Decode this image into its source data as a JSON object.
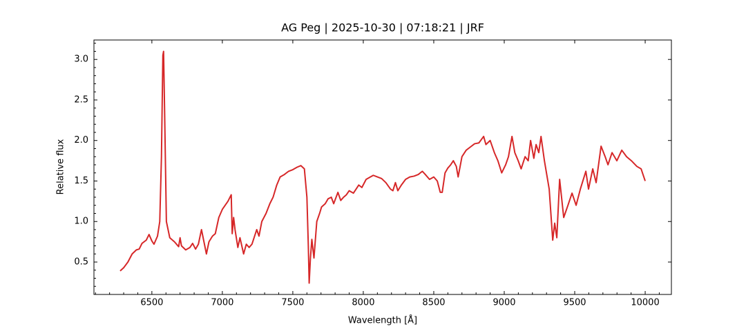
{
  "chart_data": {
    "type": "line",
    "title": "AG Peg | 2025-10-30 | 07:18:21 | JRF",
    "xlabel": "Wavelength [Å]",
    "ylabel": "Relative flux",
    "color": "#d62728",
    "x": [
      6275,
      6300,
      6330,
      6360,
      6390,
      6410,
      6430,
      6460,
      6480,
      6500,
      6515,
      6540,
      6556,
      6568,
      6578,
      6583,
      6590,
      6603,
      6627,
      6660,
      6690,
      6700,
      6710,
      6740,
      6770,
      6789,
      6810,
      6830,
      6852,
      6887,
      6905,
      6930,
      6950,
      6975,
      7000,
      7020,
      7040,
      7063,
      7070,
      7080,
      7090,
      7110,
      7125,
      7151,
      7170,
      7190,
      7210,
      7244,
      7260,
      7280,
      7310,
      7337,
      7360,
      7386,
      7410,
      7440,
      7470,
      7500,
      7530,
      7557,
      7582,
      7600,
      7610,
      7616,
      7625,
      7635,
      7650,
      7670,
      7690,
      7704,
      7730,
      7750,
      7773,
      7790,
      7820,
      7840,
      7860,
      7880,
      7900,
      7930,
      7968,
      7990,
      8020,
      8050,
      8071,
      8100,
      8130,
      8160,
      8193,
      8210,
      8228,
      8245,
      8270,
      8300,
      8330,
      8360,
      8390,
      8419,
      8440,
      8470,
      8500,
      8525,
      8546,
      8560,
      8580,
      8600,
      8620,
      8639,
      8660,
      8673,
      8700,
      8730,
      8760,
      8790,
      8820,
      8854,
      8870,
      8900,
      8930,
      8955,
      8982,
      9010,
      9030,
      9055,
      9075,
      9099,
      9120,
      9148,
      9170,
      9187,
      9210,
      9226,
      9245,
      9261,
      9285,
      9319,
      9344,
      9358,
      9373,
      9393,
      9422,
      9452,
      9481,
      9510,
      9540,
      9579,
      9598,
      9628,
      9652,
      9687,
      9716,
      9736,
      9765,
      9799,
      9834,
      9868,
      9902,
      9941,
      9971,
      10000
    ],
    "values": [
      0.39,
      0.43,
      0.5,
      0.6,
      0.65,
      0.66,
      0.73,
      0.77,
      0.84,
      0.76,
      0.72,
      0.82,
      1.0,
      1.8,
      3.05,
      3.1,
      2.4,
      1.0,
      0.8,
      0.75,
      0.69,
      0.8,
      0.7,
      0.65,
      0.68,
      0.73,
      0.66,
      0.72,
      0.9,
      0.6,
      0.75,
      0.82,
      0.85,
      1.05,
      1.15,
      1.2,
      1.25,
      1.33,
      0.85,
      1.05,
      0.9,
      0.68,
      0.8,
      0.6,
      0.72,
      0.68,
      0.72,
      0.9,
      0.82,
      1.0,
      1.1,
      1.22,
      1.3,
      1.45,
      1.55,
      1.58,
      1.62,
      1.64,
      1.67,
      1.69,
      1.65,
      1.3,
      0.7,
      0.24,
      0.55,
      0.78,
      0.55,
      1.0,
      1.1,
      1.18,
      1.22,
      1.28,
      1.3,
      1.22,
      1.36,
      1.26,
      1.3,
      1.33,
      1.38,
      1.35,
      1.45,
      1.42,
      1.52,
      1.55,
      1.57,
      1.55,
      1.53,
      1.48,
      1.4,
      1.38,
      1.48,
      1.38,
      1.45,
      1.52,
      1.55,
      1.56,
      1.58,
      1.62,
      1.58,
      1.52,
      1.55,
      1.5,
      1.36,
      1.36,
      1.6,
      1.66,
      1.7,
      1.75,
      1.68,
      1.55,
      1.8,
      1.88,
      1.92,
      1.96,
      1.97,
      2.05,
      1.95,
      2.0,
      1.85,
      1.75,
      1.6,
      1.7,
      1.8,
      2.05,
      1.85,
      1.75,
      1.65,
      1.8,
      1.75,
      2.0,
      1.78,
      1.95,
      1.85,
      2.05,
      1.75,
      1.4,
      0.77,
      0.98,
      0.8,
      1.52,
      1.05,
      1.2,
      1.35,
      1.2,
      1.4,
      1.62,
      1.4,
      1.65,
      1.48,
      1.93,
      1.8,
      1.7,
      1.85,
      1.75,
      1.88,
      1.8,
      1.75,
      1.68,
      1.65,
      1.5
    ],
    "xlim": [
      6089,
      10186
    ],
    "ylim": [
      0.1,
      3.24
    ],
    "xticks": [
      6500,
      7000,
      7500,
      8000,
      8500,
      9000,
      9500,
      10000
    ],
    "yticks": [
      0.5,
      {
        "value": 1,
        "label": "1.0"
      },
      1.5,
      {
        "value": 2,
        "label": "2.0"
      },
      2.5,
      {
        "value": 3,
        "label": "3.0"
      }
    ],
    "xminorticks": [
      6100,
      6200,
      6300,
      6400,
      6600,
      6700,
      6800,
      6900,
      7100,
      7200,
      7300,
      7400,
      7600,
      7700,
      7800,
      7900,
      8100,
      8200,
      8300,
      8400,
      8600,
      8700,
      8800,
      8900,
      9100,
      9200,
      9300,
      9400,
      9600,
      9700,
      9800,
      9900,
      10100
    ],
    "yminorticks": [
      0.2,
      0.3,
      0.4,
      0.6,
      0.7,
      0.8,
      0.9,
      1.1,
      1.2,
      1.3,
      1.4,
      1.6,
      1.7,
      1.8,
      1.9,
      2.1,
      2.2,
      2.3,
      2.4,
      2.6,
      2.7,
      2.8,
      2.9,
      3.1,
      3.2
    ]
  }
}
